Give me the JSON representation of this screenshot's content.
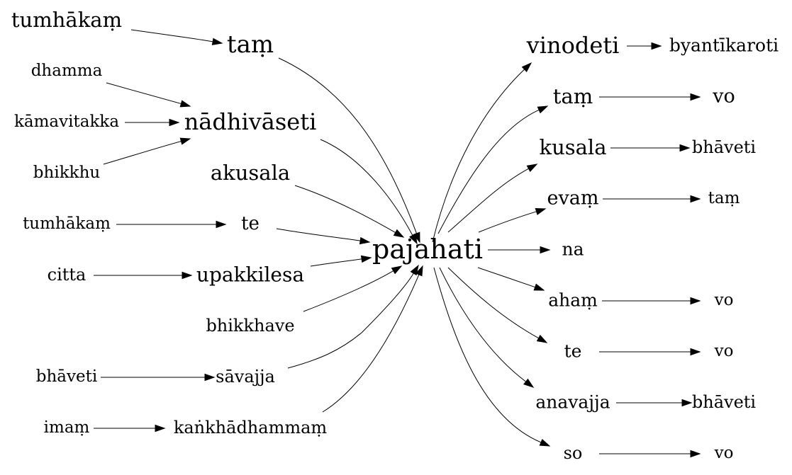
{
  "diagram": {
    "type": "directed-graph",
    "center": "pajahati",
    "nodes": [
      {
        "id": "pajahati",
        "label": "pajahati"
      },
      {
        "id": "tam_in",
        "label": "taṃ"
      },
      {
        "id": "tumhakam_top",
        "label": "tumhākaṃ"
      },
      {
        "id": "nadhivaseti",
        "label": "nādhivāseti"
      },
      {
        "id": "dhamma",
        "label": "dhamma"
      },
      {
        "id": "kamavitakka",
        "label": "kāmavitakka"
      },
      {
        "id": "bhikkhu",
        "label": "bhikkhu"
      },
      {
        "id": "akusala",
        "label": "akusala"
      },
      {
        "id": "te_in",
        "label": "te"
      },
      {
        "id": "tumhakam_mid",
        "label": "tumhākaṃ"
      },
      {
        "id": "upakkilesa",
        "label": "upakkilesa"
      },
      {
        "id": "citta",
        "label": "citta"
      },
      {
        "id": "bhikkhave",
        "label": "bhikkhave"
      },
      {
        "id": "savajja",
        "label": "sāvajja"
      },
      {
        "id": "bhaveti_left",
        "label": "bhāveti"
      },
      {
        "id": "kankhadhammam",
        "label": "kaṅkhādhammaṃ"
      },
      {
        "id": "imam",
        "label": "imaṃ"
      },
      {
        "id": "vinodeti",
        "label": "vinodeti"
      },
      {
        "id": "byantikaroti",
        "label": "byantīkaroti"
      },
      {
        "id": "tam_out",
        "label": "taṃ"
      },
      {
        "id": "vo_1",
        "label": "vo"
      },
      {
        "id": "kusala",
        "label": "kusala"
      },
      {
        "id": "bhaveti_1",
        "label": "bhāveti"
      },
      {
        "id": "evam",
        "label": "evaṃ"
      },
      {
        "id": "tam_leaf",
        "label": "taṃ"
      },
      {
        "id": "na",
        "label": "na"
      },
      {
        "id": "aham",
        "label": "ahaṃ"
      },
      {
        "id": "vo_2",
        "label": "vo"
      },
      {
        "id": "te_out",
        "label": "te"
      },
      {
        "id": "vo_3",
        "label": "vo"
      },
      {
        "id": "anavajja",
        "label": "anavajja"
      },
      {
        "id": "bhaveti_2",
        "label": "bhāveti"
      },
      {
        "id": "so",
        "label": "so"
      },
      {
        "id": "vo_4",
        "label": "vo"
      }
    ],
    "edges": [
      {
        "from": "tumhakam_top",
        "to": "tam_in"
      },
      {
        "from": "tam_in",
        "to": "pajahati"
      },
      {
        "from": "dhamma",
        "to": "nadhivaseti"
      },
      {
        "from": "kamavitakka",
        "to": "nadhivaseti"
      },
      {
        "from": "bhikkhu",
        "to": "nadhivaseti"
      },
      {
        "from": "nadhivaseti",
        "to": "pajahati"
      },
      {
        "from": "akusala",
        "to": "pajahati"
      },
      {
        "from": "tumhakam_mid",
        "to": "te_in"
      },
      {
        "from": "te_in",
        "to": "pajahati"
      },
      {
        "from": "citta",
        "to": "upakkilesa"
      },
      {
        "from": "upakkilesa",
        "to": "pajahati"
      },
      {
        "from": "bhikkhave",
        "to": "pajahati"
      },
      {
        "from": "bhaveti_left",
        "to": "savajja"
      },
      {
        "from": "savajja",
        "to": "pajahati"
      },
      {
        "from": "imam",
        "to": "kankhadhammam"
      },
      {
        "from": "kankhadhammam",
        "to": "pajahati"
      },
      {
        "from": "pajahati",
        "to": "vinodeti"
      },
      {
        "from": "vinodeti",
        "to": "byantikaroti"
      },
      {
        "from": "pajahati",
        "to": "tam_out"
      },
      {
        "from": "tam_out",
        "to": "vo_1"
      },
      {
        "from": "pajahati",
        "to": "kusala"
      },
      {
        "from": "kusala",
        "to": "bhaveti_1"
      },
      {
        "from": "pajahati",
        "to": "evam"
      },
      {
        "from": "evam",
        "to": "tam_leaf"
      },
      {
        "from": "pajahati",
        "to": "na"
      },
      {
        "from": "pajahati",
        "to": "aham"
      },
      {
        "from": "aham",
        "to": "vo_2"
      },
      {
        "from": "pajahati",
        "to": "te_out"
      },
      {
        "from": "te_out",
        "to": "vo_3"
      },
      {
        "from": "pajahati",
        "to": "anavajja"
      },
      {
        "from": "anavajja",
        "to": "bhaveti_2"
      },
      {
        "from": "pajahati",
        "to": "so"
      },
      {
        "from": "so",
        "to": "vo_4"
      }
    ]
  }
}
